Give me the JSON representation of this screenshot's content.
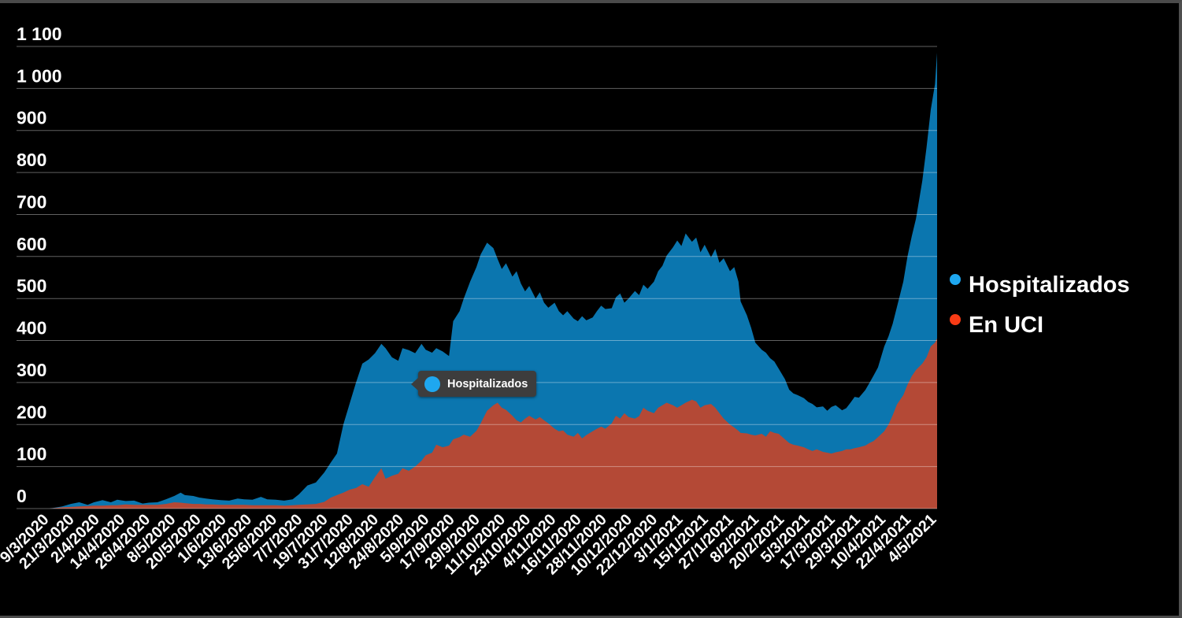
{
  "chart_data": {
    "type": "area",
    "title": "",
    "xlabel": "",
    "ylabel": "",
    "ylim": [
      0,
      1100
    ],
    "y_tick_step": 100,
    "y_tick_labels": [
      "1 100",
      "1 000",
      "900",
      "800",
      "700",
      "600",
      "500",
      "400",
      "300",
      "200",
      "100",
      "0"
    ],
    "grid": "on",
    "legend_position": "right",
    "x_tick_labels": [
      "9/3/2020",
      "21/3/2020",
      "2/4/2020",
      "14/4/2020",
      "26/4/2020",
      "8/5/2020",
      "20/5/2020",
      "1/6/2020",
      "13/6/2020",
      "25/6/2020",
      "7/7/2020",
      "19/7/2020",
      "31/7/2020",
      "12/8/2020",
      "24/8/2020",
      "5/9/2020",
      "17/9/2020",
      "29/9/2020",
      "11/10/2020",
      "23/10/2020",
      "4/11/2020",
      "16/11/2020",
      "28/11/2020",
      "10/12/2020",
      "22/12/2020",
      "3/1/2021",
      "15/1/2021",
      "27/1/2021",
      "8/2/2021",
      "20/2/2021",
      "5/3/2021",
      "17/3/2021",
      "29/3/2021",
      "10/4/2021",
      "22/4/2021",
      "4/5/2021"
    ],
    "x_domain_days": [
      0,
      420
    ],
    "days": [
      0,
      6,
      10,
      14,
      18,
      21,
      25,
      29,
      32,
      36,
      40,
      44,
      47,
      51,
      55,
      59,
      62,
      64,
      68,
      71,
      74,
      77,
      81,
      85,
      89,
      92,
      96,
      100,
      103,
      107,
      111,
      115,
      118,
      122,
      126,
      130,
      133,
      136,
      139,
      142,
      145,
      148,
      151,
      154,
      157,
      159,
      162,
      165,
      167,
      170,
      173,
      176,
      178,
      181,
      183,
      186,
      189,
      191,
      194,
      196,
      199,
      202,
      204,
      207,
      210,
      212,
      214,
      216,
      219,
      221,
      223,
      225,
      227,
      230,
      232,
      234,
      236,
      239,
      241,
      243,
      245,
      248,
      250,
      252,
      254,
      257,
      259,
      261,
      263,
      266,
      268,
      270,
      272,
      274,
      277,
      279,
      281,
      283,
      286,
      288,
      290,
      292,
      295,
      297,
      299,
      301,
      304,
      306,
      308,
      310,
      313,
      315,
      317,
      319,
      322,
      324,
      326,
      327,
      330,
      332,
      334,
      337,
      339,
      341,
      343,
      345,
      348,
      350,
      352,
      354,
      357,
      359,
      361,
      363,
      366,
      368,
      370,
      372,
      375,
      377,
      379,
      381,
      383,
      386,
      388,
      390,
      392,
      395,
      397,
      399,
      401,
      404,
      406,
      408,
      410,
      413,
      415,
      417,
      419,
      420
    ],
    "series": [
      {
        "id": "hospitalizados",
        "name": "Hospitalizados",
        "fill_color": "#0b76af",
        "legend_color": "#1ea7f0",
        "values": [
          0,
          5,
          11,
          15,
          9,
          15,
          20,
          15,
          21,
          18,
          19,
          12,
          14,
          15,
          22,
          30,
          38,
          32,
          30,
          26,
          24,
          22,
          20,
          19,
          24,
          22,
          21,
          28,
          22,
          21,
          19,
          22,
          34,
          55,
          62,
          86,
          109,
          131,
          200,
          250,
          300,
          345,
          355,
          370,
          392,
          382,
          360,
          352,
          382,
          377,
          370,
          392,
          378,
          371,
          382,
          374,
          363,
          446,
          470,
          500,
          540,
          575,
          605,
          633,
          620,
          594,
          570,
          584,
          552,
          565,
          536,
          517,
          530,
          500,
          515,
          490,
          478,
          490,
          470,
          460,
          470,
          452,
          446,
          458,
          448,
          455,
          470,
          483,
          475,
          477,
          503,
          512,
          490,
          500,
          518,
          508,
          533,
          523,
          540,
          565,
          578,
          602,
          622,
          638,
          625,
          655,
          635,
          645,
          610,
          628,
          598,
          618,
          585,
          596,
          565,
          575,
          540,
          493,
          460,
          430,
          395,
          378,
          371,
          358,
          350,
          333,
          308,
          283,
          274,
          270,
          263,
          254,
          249,
          241,
          243,
          233,
          242,
          246,
          234,
          239,
          252,
          266,
          264,
          282,
          299,
          317,
          336,
          386,
          410,
          440,
          480,
          540,
          600,
          648,
          690,
          780,
          860,
          950,
          1010,
          1085
        ]
      },
      {
        "id": "en-uci",
        "name": "En UCI",
        "fill_color": "#b44936",
        "legend_color": "#f83b15",
        "values": [
          0,
          3,
          4,
          5,
          6,
          7,
          7,
          8,
          8,
          10,
          9,
          9,
          9,
          9,
          11,
          15,
          14,
          13,
          11,
          11,
          10,
          10,
          9,
          9,
          9,
          9,
          8,
          8,
          8,
          8,
          7,
          8,
          9,
          10,
          11,
          16,
          26,
          32,
          38,
          45,
          49,
          58,
          52,
          75,
          96,
          71,
          78,
          83,
          96,
          90,
          100,
          114,
          127,
          133,
          152,
          146,
          150,
          165,
          170,
          176,
          171,
          185,
          203,
          233,
          246,
          252,
          240,
          235,
          221,
          210,
          205,
          214,
          221,
          212,
          218,
          210,
          203,
          190,
          184,
          186,
          176,
          171,
          180,
          167,
          175,
          184,
          190,
          195,
          190,
          203,
          221,
          214,
          227,
          218,
          214,
          220,
          240,
          233,
          227,
          240,
          246,
          252,
          246,
          240,
          246,
          252,
          259,
          255,
          240,
          246,
          249,
          240,
          227,
          214,
          200,
          193,
          185,
          180,
          179,
          176,
          174,
          178,
          171,
          184,
          180,
          178,
          165,
          156,
          152,
          150,
          146,
          141,
          137,
          141,
          135,
          133,
          131,
          134,
          137,
          141,
          141,
          144,
          146,
          150,
          156,
          161,
          170,
          184,
          200,
          222,
          248,
          270,
          295,
          315,
          330,
          345,
          360,
          386,
          395,
          405
        ]
      }
    ]
  },
  "tooltip": {
    "label": "Hospitalizados",
    "dot_color": "#1ea7f0",
    "background": "#3d3d3d"
  },
  "legend": {
    "items": [
      {
        "label": "Hospitalizados",
        "color": "#1ea7f0"
      },
      {
        "label": "En UCI",
        "color": "#f83b15"
      }
    ]
  },
  "colors": {
    "background": "#000000",
    "gridline": "rgba(255,255,255,0.38)",
    "axis_text": "#ffffff",
    "frame": "#4a4a4a"
  }
}
